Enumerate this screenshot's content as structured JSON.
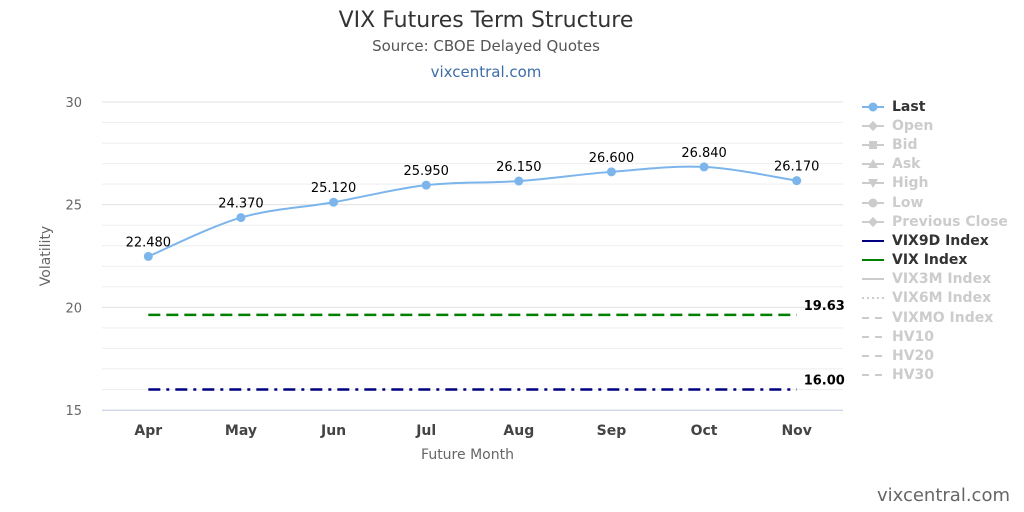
{
  "chart_data": {
    "type": "line",
    "title": "VIX Futures Term Structure",
    "subtitle": "Source: CBOE Delayed Quotes",
    "link_text": "vixcentral.com",
    "xlabel": "Future Month",
    "ylabel": "Volatility",
    "categories": [
      "Apr",
      "May",
      "Jun",
      "Jul",
      "Aug",
      "Sep",
      "Oct",
      "Nov"
    ],
    "ylim": [
      15,
      30
    ],
    "yticks": [
      "15",
      "20",
      "25",
      "30"
    ],
    "grid": true,
    "legend_position": "right",
    "series": [
      {
        "name": "Last",
        "values": [
          22.48,
          24.37,
          25.12,
          25.95,
          26.15,
          26.6,
          26.84,
          26.17
        ],
        "labels": [
          "22.480",
          "24.370",
          "25.120",
          "25.950",
          "26.150",
          "26.600",
          "26.840",
          "26.170"
        ],
        "color": "#7cb5ec"
      },
      {
        "name": "VIX Index",
        "values": [
          19.63,
          19.63,
          19.63,
          19.63,
          19.63,
          19.63,
          19.63,
          19.63
        ],
        "end_label": "19.63",
        "color": "#008000"
      },
      {
        "name": "VIX9D Index",
        "values": [
          16.0,
          16.0,
          16.0,
          16.0,
          16.0,
          16.0,
          16.0,
          16.0
        ],
        "end_label": "16.00",
        "color": "#000080"
      }
    ]
  },
  "legend": [
    {
      "label": "Last",
      "symbol": "circle-line",
      "color": "#7cb5ec",
      "visible": true
    },
    {
      "label": "Open",
      "symbol": "diamond-line",
      "color": "#cccccc",
      "visible": false
    },
    {
      "label": "Bid",
      "symbol": "square-line",
      "color": "#cccccc",
      "visible": false
    },
    {
      "label": "Ask",
      "symbol": "triangle-line",
      "color": "#cccccc",
      "visible": false
    },
    {
      "label": "High",
      "symbol": "triangle-down-line",
      "color": "#cccccc",
      "visible": false
    },
    {
      "label": "Low",
      "symbol": "circle-line",
      "color": "#cccccc",
      "visible": false
    },
    {
      "label": "Previous Close",
      "symbol": "diamond-line",
      "color": "#cccccc",
      "visible": false
    },
    {
      "label": "VIX9D Index",
      "symbol": "solid-line",
      "color": "#000080",
      "visible": true
    },
    {
      "label": "VIX Index",
      "symbol": "solid-line",
      "color": "#008000",
      "visible": true
    },
    {
      "label": "VIX3M Index",
      "symbol": "solid-line",
      "color": "#cccccc",
      "visible": false
    },
    {
      "label": "VIX6M Index",
      "symbol": "dotted-line",
      "color": "#cccccc",
      "visible": false
    },
    {
      "label": "VIXMO Index",
      "symbol": "dashed-line",
      "color": "#cccccc",
      "visible": false
    },
    {
      "label": "HV10",
      "symbol": "dashed-line",
      "color": "#cccccc",
      "visible": false
    },
    {
      "label": "HV20",
      "symbol": "dashed-line",
      "color": "#cccccc",
      "visible": false
    },
    {
      "label": "HV30",
      "symbol": "dashed-line",
      "color": "#cccccc",
      "visible": false
    }
  ],
  "watermark": "vixcentral.com"
}
